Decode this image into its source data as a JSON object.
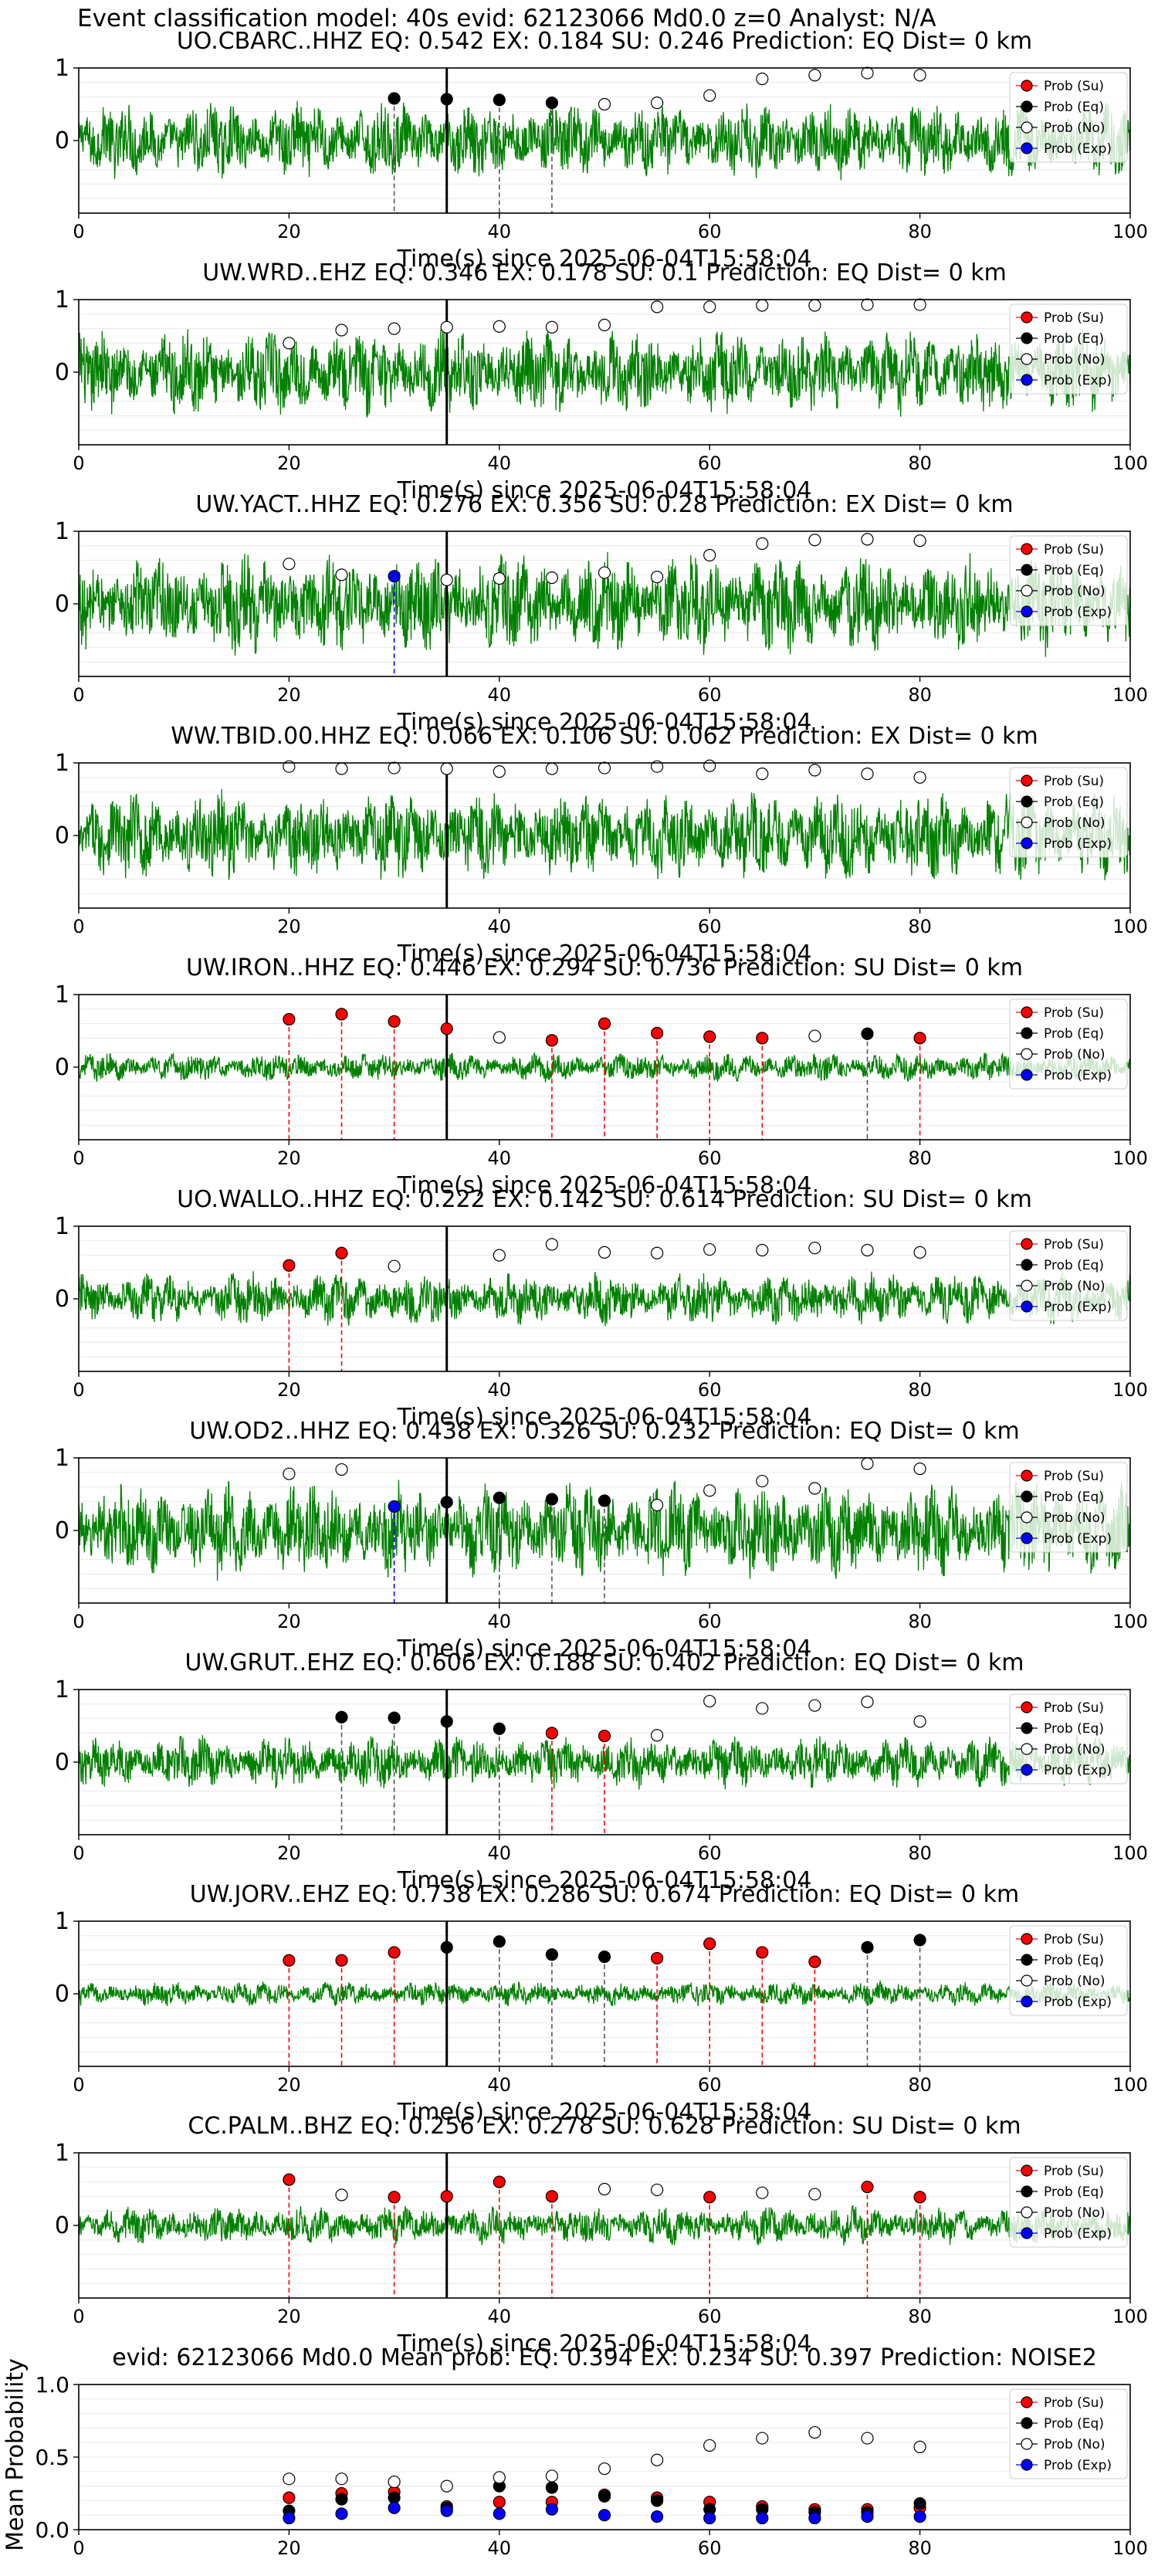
{
  "figure_title": "Event classification model: 40s evid: 62123066 Md0.0 z=0 Analyst: N/A",
  "xlabel": "Time(s) since 2025-06-04T15:58:04",
  "legend_labels": [
    "Prob (Su)",
    "Prob (Eq)",
    "Prob (No)",
    "Prob (Exp)"
  ],
  "colors": {
    "su": "#ff0000",
    "eq": "#000000",
    "no": "#ffffff",
    "exp": "#0000ff",
    "trace": "#008000"
  },
  "chart_data": [
    {
      "type": "line",
      "title": "UO.CBARC..HHZ   EQ: 0.542   EX: 0.184   SU: 0.246    Prediction: EQ    Dist= 0 km",
      "xlim": [
        0,
        100
      ],
      "ylim": [
        -1,
        1
      ],
      "yticks": [
        0,
        1
      ],
      "xticks": [
        0,
        20,
        40,
        60,
        80,
        100
      ],
      "trace_amp": 0.32,
      "event_line": 35,
      "markers": [
        {
          "x": 30,
          "y": 0.58,
          "cls": "eq"
        },
        {
          "x": 35,
          "y": 0.57,
          "cls": "eq"
        },
        {
          "x": 40,
          "y": 0.56,
          "cls": "eq"
        },
        {
          "x": 45,
          "y": 0.52,
          "cls": "eq"
        },
        {
          "x": 50,
          "y": 0.5,
          "cls": "no"
        },
        {
          "x": 55,
          "y": 0.52,
          "cls": "no"
        },
        {
          "x": 60,
          "y": 0.62,
          "cls": "no"
        },
        {
          "x": 65,
          "y": 0.85,
          "cls": "no"
        },
        {
          "x": 70,
          "y": 0.9,
          "cls": "no"
        },
        {
          "x": 75,
          "y": 0.93,
          "cls": "no"
        },
        {
          "x": 80,
          "y": 0.9,
          "cls": "no"
        }
      ]
    },
    {
      "type": "line",
      "title": "UW.WRD..EHZ   EQ: 0.346   EX: 0.178   SU: 0.1    Prediction: EQ    Dist= 0 km",
      "xlim": [
        0,
        100
      ],
      "ylim": [
        -1,
        1
      ],
      "yticks": [
        0,
        1
      ],
      "xticks": [
        0,
        20,
        40,
        60,
        80,
        100
      ],
      "trace_amp": 0.36,
      "event_line": 35,
      "markers": [
        {
          "x": 20,
          "y": 0.4,
          "cls": "no"
        },
        {
          "x": 25,
          "y": 0.58,
          "cls": "no"
        },
        {
          "x": 30,
          "y": 0.6,
          "cls": "no"
        },
        {
          "x": 35,
          "y": 0.62,
          "cls": "no"
        },
        {
          "x": 40,
          "y": 0.63,
          "cls": "no"
        },
        {
          "x": 45,
          "y": 0.62,
          "cls": "no"
        },
        {
          "x": 50,
          "y": 0.65,
          "cls": "no"
        },
        {
          "x": 55,
          "y": 0.9,
          "cls": "no"
        },
        {
          "x": 60,
          "y": 0.9,
          "cls": "no"
        },
        {
          "x": 65,
          "y": 0.92,
          "cls": "no"
        },
        {
          "x": 70,
          "y": 0.92,
          "cls": "no"
        },
        {
          "x": 75,
          "y": 0.93,
          "cls": "no"
        },
        {
          "x": 80,
          "y": 0.93,
          "cls": "no"
        }
      ]
    },
    {
      "type": "line",
      "title": "UW.YACT..HHZ   EQ: 0.276   EX: 0.356   SU: 0.28    Prediction: EX    Dist= 0 km",
      "xlim": [
        0,
        100
      ],
      "ylim": [
        -1,
        1
      ],
      "yticks": [
        0,
        1
      ],
      "xticks": [
        0,
        20,
        40,
        60,
        80,
        100
      ],
      "trace_amp": 0.42,
      "event_line": 35,
      "markers": [
        {
          "x": 20,
          "y": 0.55,
          "cls": "no"
        },
        {
          "x": 25,
          "y": 0.4,
          "cls": "no"
        },
        {
          "x": 30,
          "y": 0.38,
          "cls": "exp"
        },
        {
          "x": 35,
          "y": 0.33,
          "cls": "no"
        },
        {
          "x": 40,
          "y": 0.35,
          "cls": "no"
        },
        {
          "x": 45,
          "y": 0.36,
          "cls": "no"
        },
        {
          "x": 50,
          "y": 0.43,
          "cls": "no"
        },
        {
          "x": 55,
          "y": 0.37,
          "cls": "no"
        },
        {
          "x": 60,
          "y": 0.67,
          "cls": "no"
        },
        {
          "x": 65,
          "y": 0.83,
          "cls": "no"
        },
        {
          "x": 70,
          "y": 0.88,
          "cls": "no"
        },
        {
          "x": 75,
          "y": 0.89,
          "cls": "no"
        },
        {
          "x": 80,
          "y": 0.87,
          "cls": "no"
        }
      ]
    },
    {
      "type": "line",
      "title": "WW.TBID.00.HHZ   EQ: 0.066   EX: 0.106   SU: 0.062    Prediction: EX    Dist= 0 km",
      "xlim": [
        0,
        100
      ],
      "ylim": [
        -1,
        1
      ],
      "yticks": [
        0,
        1
      ],
      "xticks": [
        0,
        20,
        40,
        60,
        80,
        100
      ],
      "trace_amp": 0.38,
      "event_line": 35,
      "markers": [
        {
          "x": 20,
          "y": 0.95,
          "cls": "no"
        },
        {
          "x": 25,
          "y": 0.92,
          "cls": "no"
        },
        {
          "x": 30,
          "y": 0.93,
          "cls": "no"
        },
        {
          "x": 35,
          "y": 0.92,
          "cls": "no"
        },
        {
          "x": 40,
          "y": 0.88,
          "cls": "no"
        },
        {
          "x": 45,
          "y": 0.92,
          "cls": "no"
        },
        {
          "x": 50,
          "y": 0.93,
          "cls": "no"
        },
        {
          "x": 55,
          "y": 0.95,
          "cls": "no"
        },
        {
          "x": 60,
          "y": 0.96,
          "cls": "no"
        },
        {
          "x": 65,
          "y": 0.85,
          "cls": "no"
        },
        {
          "x": 70,
          "y": 0.9,
          "cls": "no"
        },
        {
          "x": 75,
          "y": 0.85,
          "cls": "no"
        },
        {
          "x": 80,
          "y": 0.8,
          "cls": "no"
        }
      ]
    },
    {
      "type": "line",
      "title": "UW.IRON..HHZ   EQ: 0.446   EX: 0.294   SU: 0.736    Prediction: SU    Dist= 0 km",
      "xlim": [
        0,
        100
      ],
      "ylim": [
        -1,
        1
      ],
      "yticks": [
        0,
        1
      ],
      "xticks": [
        0,
        20,
        40,
        60,
        80,
        100
      ],
      "trace_amp": 0.12,
      "event_line": 35,
      "markers": [
        {
          "x": 20,
          "y": 0.66,
          "cls": "su"
        },
        {
          "x": 25,
          "y": 0.73,
          "cls": "su"
        },
        {
          "x": 30,
          "y": 0.63,
          "cls": "su"
        },
        {
          "x": 35,
          "y": 0.53,
          "cls": "su"
        },
        {
          "x": 40,
          "y": 0.41,
          "cls": "no"
        },
        {
          "x": 45,
          "y": 0.37,
          "cls": "su"
        },
        {
          "x": 50,
          "y": 0.6,
          "cls": "su"
        },
        {
          "x": 55,
          "y": 0.47,
          "cls": "su"
        },
        {
          "x": 60,
          "y": 0.42,
          "cls": "su"
        },
        {
          "x": 65,
          "y": 0.4,
          "cls": "su"
        },
        {
          "x": 70,
          "y": 0.43,
          "cls": "no"
        },
        {
          "x": 75,
          "y": 0.46,
          "cls": "eq"
        },
        {
          "x": 80,
          "y": 0.4,
          "cls": "su"
        }
      ]
    },
    {
      "type": "line",
      "title": "UO.WALLO..HHZ   EQ: 0.222   EX: 0.142   SU: 0.614    Prediction: SU    Dist= 0 km",
      "xlim": [
        0,
        100
      ],
      "ylim": [
        -1,
        1
      ],
      "yticks": [
        0,
        1
      ],
      "xticks": [
        0,
        20,
        40,
        60,
        80,
        100
      ],
      "trace_amp": 0.22,
      "event_line": 35,
      "markers": [
        {
          "x": 20,
          "y": 0.46,
          "cls": "su"
        },
        {
          "x": 25,
          "y": 0.63,
          "cls": "su"
        },
        {
          "x": 30,
          "y": 0.45,
          "cls": "no"
        },
        {
          "x": 40,
          "y": 0.6,
          "cls": "no"
        },
        {
          "x": 45,
          "y": 0.75,
          "cls": "no"
        },
        {
          "x": 50,
          "y": 0.64,
          "cls": "no"
        },
        {
          "x": 55,
          "y": 0.63,
          "cls": "no"
        },
        {
          "x": 60,
          "y": 0.68,
          "cls": "no"
        },
        {
          "x": 65,
          "y": 0.67,
          "cls": "no"
        },
        {
          "x": 70,
          "y": 0.7,
          "cls": "no"
        },
        {
          "x": 75,
          "y": 0.67,
          "cls": "no"
        },
        {
          "x": 80,
          "y": 0.64,
          "cls": "no"
        }
      ]
    },
    {
      "type": "line",
      "title": "UW.OD2..HHZ   EQ: 0.438   EX: 0.326   SU: 0.232    Prediction: EQ    Dist= 0 km",
      "xlim": [
        0,
        100
      ],
      "ylim": [
        -1,
        1
      ],
      "yticks": [
        0,
        1
      ],
      "xticks": [
        0,
        20,
        40,
        60,
        80,
        100
      ],
      "trace_amp": 0.4,
      "event_line": 35,
      "markers": [
        {
          "x": 20,
          "y": 0.78,
          "cls": "no"
        },
        {
          "x": 25,
          "y": 0.84,
          "cls": "no"
        },
        {
          "x": 30,
          "y": 0.33,
          "cls": "exp"
        },
        {
          "x": 35,
          "y": 0.39,
          "cls": "eq"
        },
        {
          "x": 40,
          "y": 0.45,
          "cls": "eq"
        },
        {
          "x": 45,
          "y": 0.43,
          "cls": "eq"
        },
        {
          "x": 50,
          "y": 0.41,
          "cls": "eq"
        },
        {
          "x": 55,
          "y": 0.35,
          "cls": "no"
        },
        {
          "x": 60,
          "y": 0.55,
          "cls": "no"
        },
        {
          "x": 65,
          "y": 0.68,
          "cls": "no"
        },
        {
          "x": 70,
          "y": 0.58,
          "cls": "no"
        },
        {
          "x": 75,
          "y": 0.92,
          "cls": "no"
        },
        {
          "x": 80,
          "y": 0.85,
          "cls": "no"
        }
      ]
    },
    {
      "type": "line",
      "title": "UW.GRUT..EHZ   EQ: 0.606   EX: 0.188   SU: 0.402    Prediction: EQ    Dist= 0 km",
      "xlim": [
        0,
        100
      ],
      "ylim": [
        -1,
        1
      ],
      "yticks": [
        0,
        1
      ],
      "xticks": [
        0,
        20,
        40,
        60,
        80,
        100
      ],
      "trace_amp": 0.22,
      "event_line": 35,
      "markers": [
        {
          "x": 25,
          "y": 0.62,
          "cls": "eq"
        },
        {
          "x": 30,
          "y": 0.61,
          "cls": "eq"
        },
        {
          "x": 35,
          "y": 0.56,
          "cls": "eq"
        },
        {
          "x": 40,
          "y": 0.46,
          "cls": "eq"
        },
        {
          "x": 45,
          "y": 0.4,
          "cls": "su"
        },
        {
          "x": 50,
          "y": 0.36,
          "cls": "su"
        },
        {
          "x": 55,
          "y": 0.37,
          "cls": "no"
        },
        {
          "x": 60,
          "y": 0.84,
          "cls": "no"
        },
        {
          "x": 65,
          "y": 0.74,
          "cls": "no"
        },
        {
          "x": 70,
          "y": 0.78,
          "cls": "no"
        },
        {
          "x": 75,
          "y": 0.83,
          "cls": "no"
        },
        {
          "x": 80,
          "y": 0.56,
          "cls": "no"
        }
      ]
    },
    {
      "type": "line",
      "title": "UW.JORV..EHZ   EQ: 0.738   EX: 0.286   SU: 0.674    Prediction: EQ    Dist= 0 km",
      "xlim": [
        0,
        100
      ],
      "ylim": [
        -1,
        1
      ],
      "yticks": [
        0,
        1
      ],
      "xticks": [
        0,
        20,
        40,
        60,
        80,
        100
      ],
      "trace_amp": 0.1,
      "event_line": 35,
      "markers": [
        {
          "x": 20,
          "y": 0.46,
          "cls": "su"
        },
        {
          "x": 25,
          "y": 0.46,
          "cls": "su"
        },
        {
          "x": 30,
          "y": 0.57,
          "cls": "su"
        },
        {
          "x": 35,
          "y": 0.64,
          "cls": "eq"
        },
        {
          "x": 40,
          "y": 0.72,
          "cls": "eq"
        },
        {
          "x": 45,
          "y": 0.54,
          "cls": "eq"
        },
        {
          "x": 50,
          "y": 0.51,
          "cls": "eq"
        },
        {
          "x": 55,
          "y": 0.49,
          "cls": "su"
        },
        {
          "x": 60,
          "y": 0.69,
          "cls": "su"
        },
        {
          "x": 65,
          "y": 0.57,
          "cls": "su"
        },
        {
          "x": 70,
          "y": 0.44,
          "cls": "su"
        },
        {
          "x": 75,
          "y": 0.64,
          "cls": "eq"
        },
        {
          "x": 80,
          "y": 0.74,
          "cls": "eq"
        }
      ]
    },
    {
      "type": "line",
      "title": "CC.PALM..BHZ   EQ: 0.256   EX: 0.278   SU: 0.628    Prediction: SU    Dist= 0 km",
      "xlim": [
        0,
        100
      ],
      "ylim": [
        -1,
        1
      ],
      "yticks": [
        0,
        1
      ],
      "xticks": [
        0,
        20,
        40,
        60,
        80,
        100
      ],
      "trace_amp": 0.16,
      "event_line": 35,
      "markers": [
        {
          "x": 20,
          "y": 0.63,
          "cls": "su"
        },
        {
          "x": 25,
          "y": 0.42,
          "cls": "no"
        },
        {
          "x": 30,
          "y": 0.39,
          "cls": "su"
        },
        {
          "x": 35,
          "y": 0.4,
          "cls": "su"
        },
        {
          "x": 40,
          "y": 0.6,
          "cls": "su"
        },
        {
          "x": 45,
          "y": 0.4,
          "cls": "su"
        },
        {
          "x": 50,
          "y": 0.5,
          "cls": "no"
        },
        {
          "x": 55,
          "y": 0.49,
          "cls": "no"
        },
        {
          "x": 60,
          "y": 0.39,
          "cls": "su"
        },
        {
          "x": 65,
          "y": 0.45,
          "cls": "no"
        },
        {
          "x": 70,
          "y": 0.43,
          "cls": "no"
        },
        {
          "x": 75,
          "y": 0.53,
          "cls": "su"
        },
        {
          "x": 80,
          "y": 0.39,
          "cls": "su"
        }
      ]
    },
    {
      "type": "scatter",
      "title": "evid: 62123066   Md0.0    Mean prob:    EQ: 0.394   EX: 0.234   SU: 0.397    Prediction: NOISE2",
      "ylabel": "Mean Probability",
      "xlim": [
        0,
        100
      ],
      "ylim": [
        0,
        1
      ],
      "yticks": [
        0.0,
        0.5,
        1.0
      ],
      "xticks": [
        0,
        20,
        40,
        60,
        80,
        100
      ],
      "x": [
        20,
        25,
        30,
        35,
        40,
        45,
        50,
        55,
        60,
        65,
        70,
        75,
        80
      ],
      "series": [
        {
          "name": "Prob (Su)",
          "cls": "su",
          "values": [
            0.22,
            0.25,
            0.26,
            0.16,
            0.19,
            0.19,
            0.24,
            0.22,
            0.19,
            0.16,
            0.14,
            0.14,
            0.15
          ]
        },
        {
          "name": "Prob (Eq)",
          "cls": "eq",
          "values": [
            0.13,
            0.21,
            0.22,
            0.15,
            0.3,
            0.29,
            0.23,
            0.2,
            0.14,
            0.14,
            0.12,
            0.12,
            0.18
          ]
        },
        {
          "name": "Prob (No)",
          "cls": "no",
          "values": [
            0.35,
            0.35,
            0.33,
            0.3,
            0.36,
            0.37,
            0.42,
            0.48,
            0.58,
            0.63,
            0.67,
            0.63,
            0.57
          ]
        },
        {
          "name": "Prob (Exp)",
          "cls": "exp",
          "values": [
            0.08,
            0.11,
            0.15,
            0.13,
            0.11,
            0.14,
            0.1,
            0.09,
            0.08,
            0.08,
            0.08,
            0.09,
            0.09
          ]
        }
      ]
    }
  ]
}
